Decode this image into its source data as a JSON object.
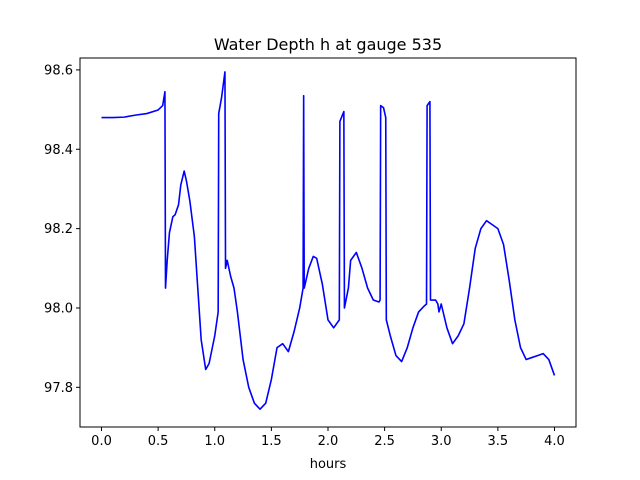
{
  "chart_data": {
    "type": "line",
    "title": "Water Depth h at gauge 535",
    "xlabel": "hours",
    "ylabel": "",
    "xlim": [
      -0.19,
      4.19
    ],
    "ylim": [
      97.7,
      98.63
    ],
    "xticks": [
      0.0,
      0.5,
      1.0,
      1.5,
      2.0,
      2.5,
      3.0,
      3.5,
      4.0
    ],
    "xtick_labels": [
      "0.0",
      "0.5",
      "1.0",
      "1.5",
      "2.0",
      "2.5",
      "3.0",
      "3.5",
      "4.0"
    ],
    "yticks": [
      97.8,
      98.0,
      98.2,
      98.4,
      98.6
    ],
    "ytick_labels": [
      "97.8",
      "98.0",
      "98.2",
      "98.4",
      "98.6"
    ],
    "grid": false,
    "series": [
      {
        "color": "#0000ff",
        "points": [
          [
            0.0,
            98.48
          ],
          [
            0.1,
            98.48
          ],
          [
            0.2,
            98.481
          ],
          [
            0.3,
            98.486
          ],
          [
            0.4,
            98.49
          ],
          [
            0.5,
            98.499
          ],
          [
            0.54,
            98.51
          ],
          [
            0.56,
            98.545
          ],
          [
            0.565,
            98.05
          ],
          [
            0.58,
            98.12
          ],
          [
            0.6,
            98.19
          ],
          [
            0.63,
            98.23
          ],
          [
            0.65,
            98.235
          ],
          [
            0.68,
            98.26
          ],
          [
            0.7,
            98.31
          ],
          [
            0.73,
            98.345
          ],
          [
            0.75,
            98.32
          ],
          [
            0.78,
            98.27
          ],
          [
            0.82,
            98.18
          ],
          [
            0.85,
            98.05
          ],
          [
            0.88,
            97.92
          ],
          [
            0.92,
            97.845
          ],
          [
            0.95,
            97.86
          ],
          [
            1.0,
            97.93
          ],
          [
            1.03,
            97.99
          ],
          [
            1.035,
            98.49
          ],
          [
            1.06,
            98.53
          ],
          [
            1.09,
            98.595
          ],
          [
            1.095,
            98.1
          ],
          [
            1.11,
            98.12
          ],
          [
            1.14,
            98.08
          ],
          [
            1.17,
            98.05
          ],
          [
            1.2,
            97.99
          ],
          [
            1.25,
            97.87
          ],
          [
            1.3,
            97.8
          ],
          [
            1.35,
            97.76
          ],
          [
            1.4,
            97.745
          ],
          [
            1.45,
            97.76
          ],
          [
            1.5,
            97.82
          ],
          [
            1.55,
            97.9
          ],
          [
            1.6,
            97.91
          ],
          [
            1.65,
            97.89
          ],
          [
            1.7,
            97.94
          ],
          [
            1.75,
            98.0
          ],
          [
            1.78,
            98.05
          ],
          [
            1.785,
            98.535
          ],
          [
            1.79,
            98.05
          ],
          [
            1.83,
            98.1
          ],
          [
            1.87,
            98.13
          ],
          [
            1.9,
            98.125
          ],
          [
            1.95,
            98.06
          ],
          [
            2.0,
            97.97
          ],
          [
            2.05,
            97.95
          ],
          [
            2.1,
            97.97
          ],
          [
            2.105,
            98.47
          ],
          [
            2.14,
            98.495
          ],
          [
            2.145,
            98.0
          ],
          [
            2.18,
            98.05
          ],
          [
            2.2,
            98.12
          ],
          [
            2.25,
            98.14
          ],
          [
            2.3,
            98.1
          ],
          [
            2.35,
            98.05
          ],
          [
            2.4,
            98.02
          ],
          [
            2.45,
            98.015
          ],
          [
            2.46,
            98.02
          ],
          [
            2.465,
            98.51
          ],
          [
            2.49,
            98.505
          ],
          [
            2.51,
            98.48
          ],
          [
            2.515,
            97.97
          ],
          [
            2.55,
            97.93
          ],
          [
            2.6,
            97.88
          ],
          [
            2.65,
            97.865
          ],
          [
            2.7,
            97.9
          ],
          [
            2.75,
            97.95
          ],
          [
            2.8,
            97.99
          ],
          [
            2.85,
            98.005
          ],
          [
            2.87,
            98.01
          ],
          [
            2.875,
            98.51
          ],
          [
            2.9,
            98.52
          ],
          [
            2.905,
            98.02
          ],
          [
            2.95,
            98.02
          ],
          [
            2.97,
            98.01
          ],
          [
            2.98,
            97.99
          ],
          [
            3.0,
            98.01
          ],
          [
            3.05,
            97.95
          ],
          [
            3.1,
            97.91
          ],
          [
            3.15,
            97.93
          ],
          [
            3.2,
            97.96
          ],
          [
            3.25,
            98.05
          ],
          [
            3.3,
            98.15
          ],
          [
            3.35,
            98.2
          ],
          [
            3.4,
            98.22
          ],
          [
            3.45,
            98.21
          ],
          [
            3.5,
            98.2
          ],
          [
            3.55,
            98.16
          ],
          [
            3.6,
            98.07
          ],
          [
            3.65,
            97.97
          ],
          [
            3.7,
            97.9
          ],
          [
            3.75,
            97.87
          ],
          [
            3.8,
            97.875
          ],
          [
            3.85,
            97.88
          ],
          [
            3.9,
            97.885
          ],
          [
            3.95,
            97.87
          ],
          [
            4.0,
            97.83
          ]
        ]
      }
    ]
  }
}
